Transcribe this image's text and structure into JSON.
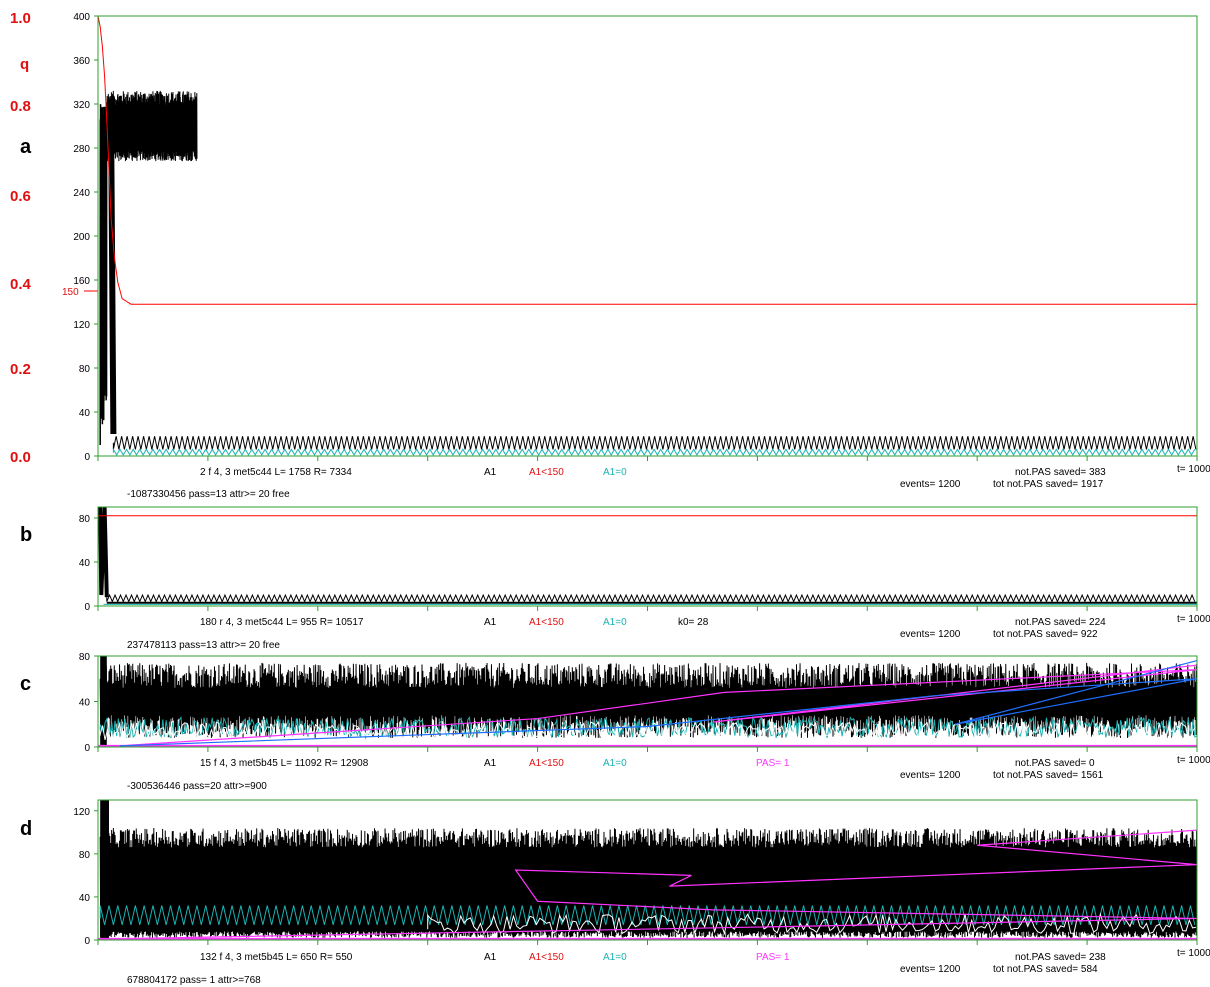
{
  "q_axis": {
    "ticks": [
      "1.0",
      "q",
      "0.8",
      "0.6",
      "0.4",
      "0.2",
      "0.0"
    ]
  },
  "colors": {
    "frame": "#2ca02c",
    "red": "#ff0000",
    "cyan": "#1ab3b3",
    "magenta": "#ff33ff",
    "blue": "#1f6fff",
    "white": "#ffffff"
  },
  "chart_data": [
    {
      "type": "line",
      "panel": "a",
      "xlim": [
        0,
        1000
      ],
      "ylim": [
        0,
        400
      ],
      "yticks": [
        "400",
        "360",
        "320",
        "280",
        "240",
        "200",
        "160",
        "120",
        "80",
        "40",
        "0"
      ],
      "marker_label": "150",
      "x_end_label": "t= 1000",
      "info": {
        "line1": [
          "2  f 4, 3 met5c44  L=  1758  R=   7334",
          "A1",
          "A1<150",
          "A1=0",
          "",
          ""
        ],
        "line2": "-1087330456    pass=13   attr>= 20      free",
        "right1": "not.PAS saved=  383",
        "right2a": "events= 1200",
        "right2b": "tot not.PAS saved= 1917"
      },
      "red_curve": {
        "x": [
          0,
          2,
          4,
          6,
          8,
          10,
          12,
          15,
          18,
          22,
          30,
          60,
          1000
        ],
        "y": [
          400,
          390,
          372,
          345,
          305,
          260,
          215,
          180,
          158,
          143,
          138,
          138,
          138
        ]
      }
    },
    {
      "type": "line",
      "panel": "b",
      "xlim": [
        0,
        1000
      ],
      "ylim": [
        0,
        90
      ],
      "yticks": [
        "80",
        "40",
        "0"
      ],
      "red_level": 82,
      "x_end_label": "t= 1000",
      "info": {
        "line1": [
          "180  r 4, 3 met5c44   L=   955  R=  10517",
          "A1",
          "A1<150",
          "A1=0",
          "k0=   28",
          ""
        ],
        "line2": "237478113    pass=13   attr>= 20      free",
        "right1": "not.PAS saved=  224",
        "right2a": "events= 1200",
        "right2b": "tot not.PAS saved=  922"
      }
    },
    {
      "type": "line",
      "panel": "c",
      "xlim": [
        0,
        1000
      ],
      "ylim": [
        0,
        80
      ],
      "yticks": [
        "80",
        "40",
        "0"
      ],
      "x_end_label": "t= 1000",
      "info": {
        "line1": [
          "15   f 4, 3 met5b45   L=  11092  R=   12908",
          "A1",
          "A1<150",
          "A1=0",
          "",
          "PAS=   1"
        ],
        "line2": "-300536446    pass=20   attr>=900",
        "right1": "not.PAS saved=    0",
        "right2a": "events= 1200",
        "right2b": "tot not.PAS saved= 1561"
      },
      "magenta_curve": {
        "x": [
          20,
          400,
          570,
          1000,
          560,
          1000
        ],
        "y": [
          1,
          25,
          48,
          68,
          22,
          72
        ]
      },
      "blue_curve": {
        "x": [
          20,
          500,
          760,
          1000,
          780,
          1000
        ],
        "y": [
          1,
          18,
          45,
          60,
          20,
          76
        ]
      }
    },
    {
      "type": "line",
      "panel": "d",
      "xlim": [
        0,
        1000
      ],
      "ylim": [
        0,
        130
      ],
      "yticks": [
        "120",
        "80",
        "40",
        "0"
      ],
      "x_end_label": "t= 1000",
      "info": {
        "line1": [
          "132   f 4, 3 met5b45   L=    650  R=    550",
          "A1",
          "A1<150",
          "A1=0",
          "",
          "PAS=   1"
        ],
        "line2": "678804172     pass= 1   attr>=768",
        "right1": "not.PAS saved=  238",
        "right2a": "events= 1200",
        "right2b": "tot not.PAS saved=  584"
      },
      "magenta_curve": {
        "x": [
          10,
          600,
          900,
          1000,
          560,
          400,
          380,
          540,
          520,
          1000,
          800,
          1000
        ],
        "y": [
          1,
          12,
          18,
          20,
          28,
          36,
          65,
          60,
          50,
          70,
          88,
          102
        ]
      }
    }
  ],
  "panel_letters": [
    "a",
    "b",
    "c",
    "d"
  ]
}
